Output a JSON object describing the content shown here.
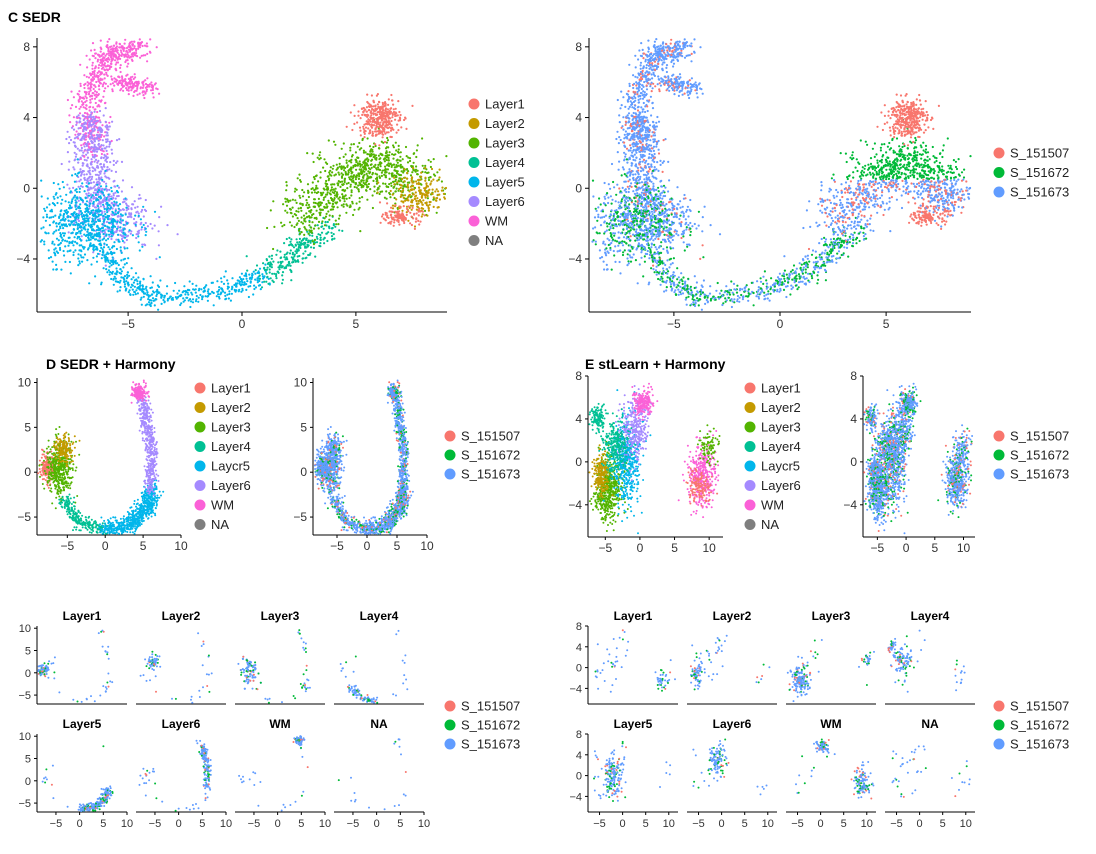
{
  "colors": {
    "layers": {
      "Layer1": "#F8766D",
      "Layer2": "#C49A00",
      "Layer3": "#53B400",
      "Layer4": "#00C094",
      "Layer5": "#00B6EB",
      "Layer6": "#A58AFF",
      "WM": "#FB61D7",
      "NA": "#7F7F7F"
    },
    "samples": {
      "S_151507": "#F8766D",
      "S_151672": "#00BA38",
      "S_151673": "#619CFF"
    }
  },
  "legends": {
    "layers": [
      "Layer1",
      "Layer2",
      "Layer3",
      "Layer4",
      "Laycr5",
      "Layer6",
      "WM",
      "NA"
    ],
    "layers_c": [
      "Layer1",
      "Layer2",
      "Layer3",
      "Layer4",
      "Layer5",
      "Layer6",
      "WM",
      "NA"
    ],
    "samples": [
      "S_151507",
      "S_151672",
      "S_151673"
    ]
  },
  "chart_data": [
    {
      "panel": "C",
      "title": "C SEDR",
      "type": "scatter",
      "color_by": "layer",
      "xticks": [
        "−5",
        "0",
        "5"
      ],
      "yticks": [
        "8",
        "4",
        "0",
        "−4"
      ],
      "xlim": [
        -9,
        9
      ],
      "ylim": [
        -7,
        8.5
      ]
    },
    {
      "panel": "C-right",
      "title": "",
      "type": "scatter",
      "color_by": "sample",
      "xticks": [
        "−5",
        "0",
        "5"
      ],
      "yticks": [
        "8",
        "4",
        "0",
        "−4"
      ],
      "xlim": [
        -9,
        9
      ],
      "ylim": [
        -7,
        8.5
      ]
    },
    {
      "panel": "D",
      "title": "D SEDR + Harmony",
      "type": "scatter",
      "color_by": "layer",
      "xticks": [
        "−5",
        "0",
        "5",
        "10"
      ],
      "yticks": [
        "10",
        "5",
        "0",
        "−5"
      ],
      "xlim": [
        -9,
        10
      ],
      "ylim": [
        -7,
        10.5
      ]
    },
    {
      "panel": "D-right",
      "title": "",
      "type": "scatter",
      "color_by": "sample",
      "xticks": [
        "−5",
        "0",
        "5",
        "10"
      ],
      "yticks": [
        "10",
        "5",
        "0",
        "−5"
      ],
      "xlim": [
        -9,
        10
      ],
      "ylim": [
        -7,
        10.5
      ]
    },
    {
      "panel": "E",
      "title": "E stLearn + Harmony",
      "type": "scatter",
      "color_by": "layer",
      "xticks": [
        "−5",
        "0",
        "5",
        "10"
      ],
      "yticks": [
        "8",
        "4",
        "0",
        "−4"
      ],
      "xlim": [
        -7.5,
        12
      ],
      "ylim": [
        -7,
        8
      ]
    },
    {
      "panel": "E-right",
      "title": "",
      "type": "scatter",
      "color_by": "sample",
      "xticks": [
        "−5",
        "0",
        "5",
        "10"
      ],
      "yticks": [
        "8",
        "4",
        "0",
        "−4"
      ],
      "xlim": [
        -7.5,
        12
      ],
      "ylim": [
        -7,
        8
      ]
    },
    {
      "panel": "D-facets",
      "title": "",
      "type": "scatter",
      "color_by": "sample",
      "facets": [
        "Layer1",
        "Layer2",
        "Layer3",
        "Layer4",
        "Layer5",
        "Layer6",
        "WM",
        "NA"
      ],
      "xticks": [
        "−5",
        "0",
        "5",
        "10"
      ],
      "yticks": [
        "10",
        "5",
        "0",
        "−5"
      ],
      "xlim": [
        -9,
        10
      ],
      "ylim": [
        -7,
        10.5
      ]
    },
    {
      "panel": "E-facets",
      "title": "",
      "type": "scatter",
      "color_by": "sample",
      "facets": [
        "Layer1",
        "Layer2",
        "Layer3",
        "Layer4",
        "Layer5",
        "Layer6",
        "WM",
        "NA"
      ],
      "xticks": [
        "−5",
        "0",
        "5",
        "10"
      ],
      "yticks": [
        "8",
        "4",
        "0",
        "−4"
      ],
      "xlim": [
        -7.5,
        12
      ],
      "ylim": [
        -7,
        8
      ]
    }
  ]
}
